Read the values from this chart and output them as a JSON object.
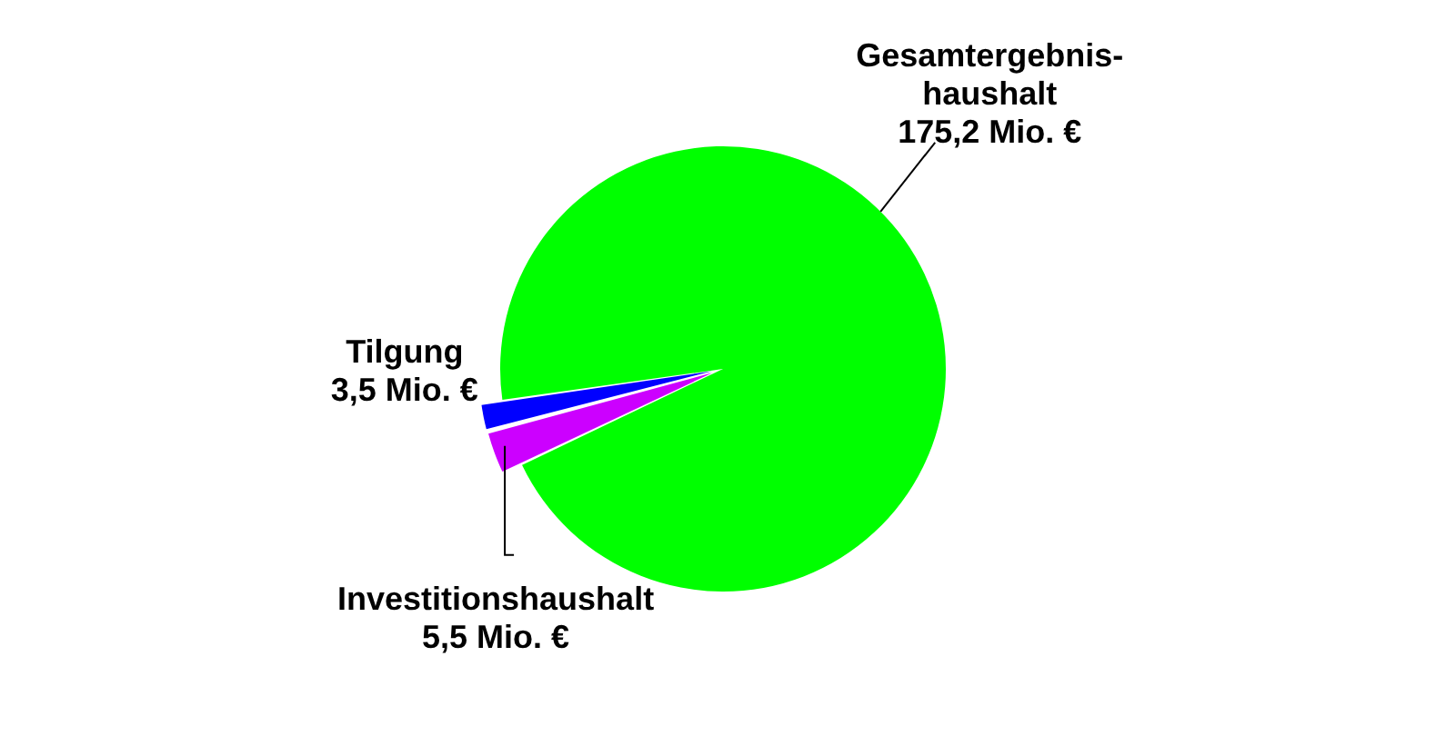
{
  "chart_data": {
    "type": "pie",
    "categories": [
      "Gesamtergebnis-haushalt",
      "Investitionshaushalt",
      "Tilgung"
    ],
    "values": [
      175.2,
      5.5,
      3.5
    ],
    "colors": [
      "#00ff00",
      "#cc00ff",
      "#0000ff"
    ],
    "value_labels": [
      "175,2 Mio. €",
      "5,5 Mio. €",
      "3,5 Mio. €"
    ],
    "legend": false
  }
}
